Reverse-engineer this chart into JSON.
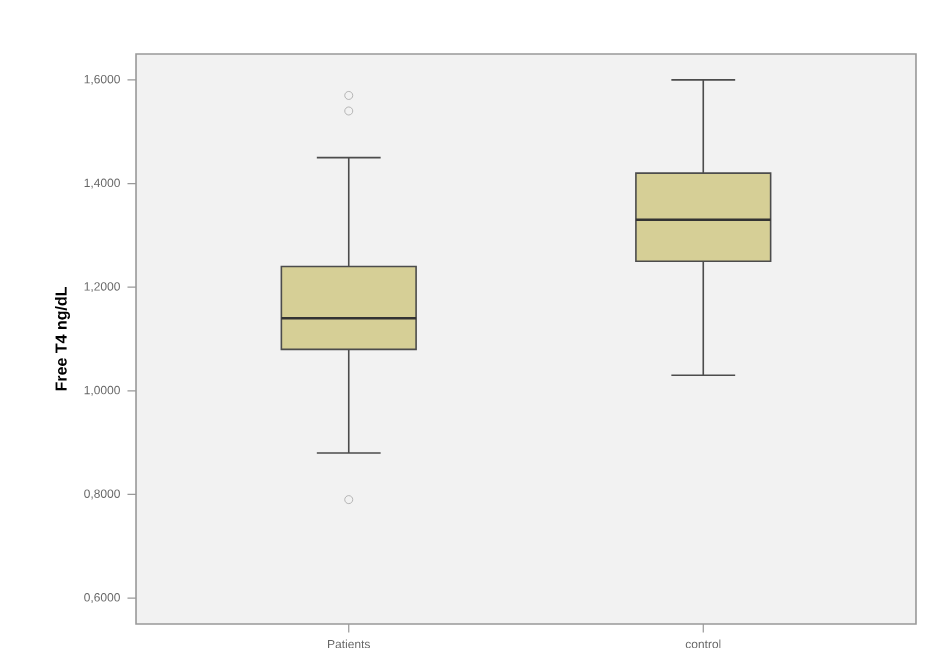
{
  "chart_data": {
    "type": "box",
    "ylabel": "Free T4 ng/dL",
    "categories": [
      "Patients",
      "control"
    ],
    "boxes": [
      {
        "low": 0.88,
        "q1": 1.08,
        "median": 1.14,
        "q3": 1.24,
        "high": 1.45,
        "outliers": [
          0.79,
          1.54,
          1.57
        ]
      },
      {
        "low": 1.03,
        "q1": 1.25,
        "median": 1.33,
        "q3": 1.42,
        "high": 1.6
      }
    ],
    "color": "#d6cf96",
    "ylim": [
      0.55,
      1.65
    ],
    "yticks": [
      {
        "value": 0.6,
        "label": "0,6000"
      },
      {
        "value": 0.8,
        "label": "0,8000"
      },
      {
        "value": 1.0,
        "label": "1,0000"
      },
      {
        "value": 1.2,
        "label": "1,2000"
      },
      {
        "value": 1.4,
        "label": "1,4000"
      },
      {
        "value": 1.6,
        "label": "1,6000"
      }
    ],
    "grid": false
  }
}
